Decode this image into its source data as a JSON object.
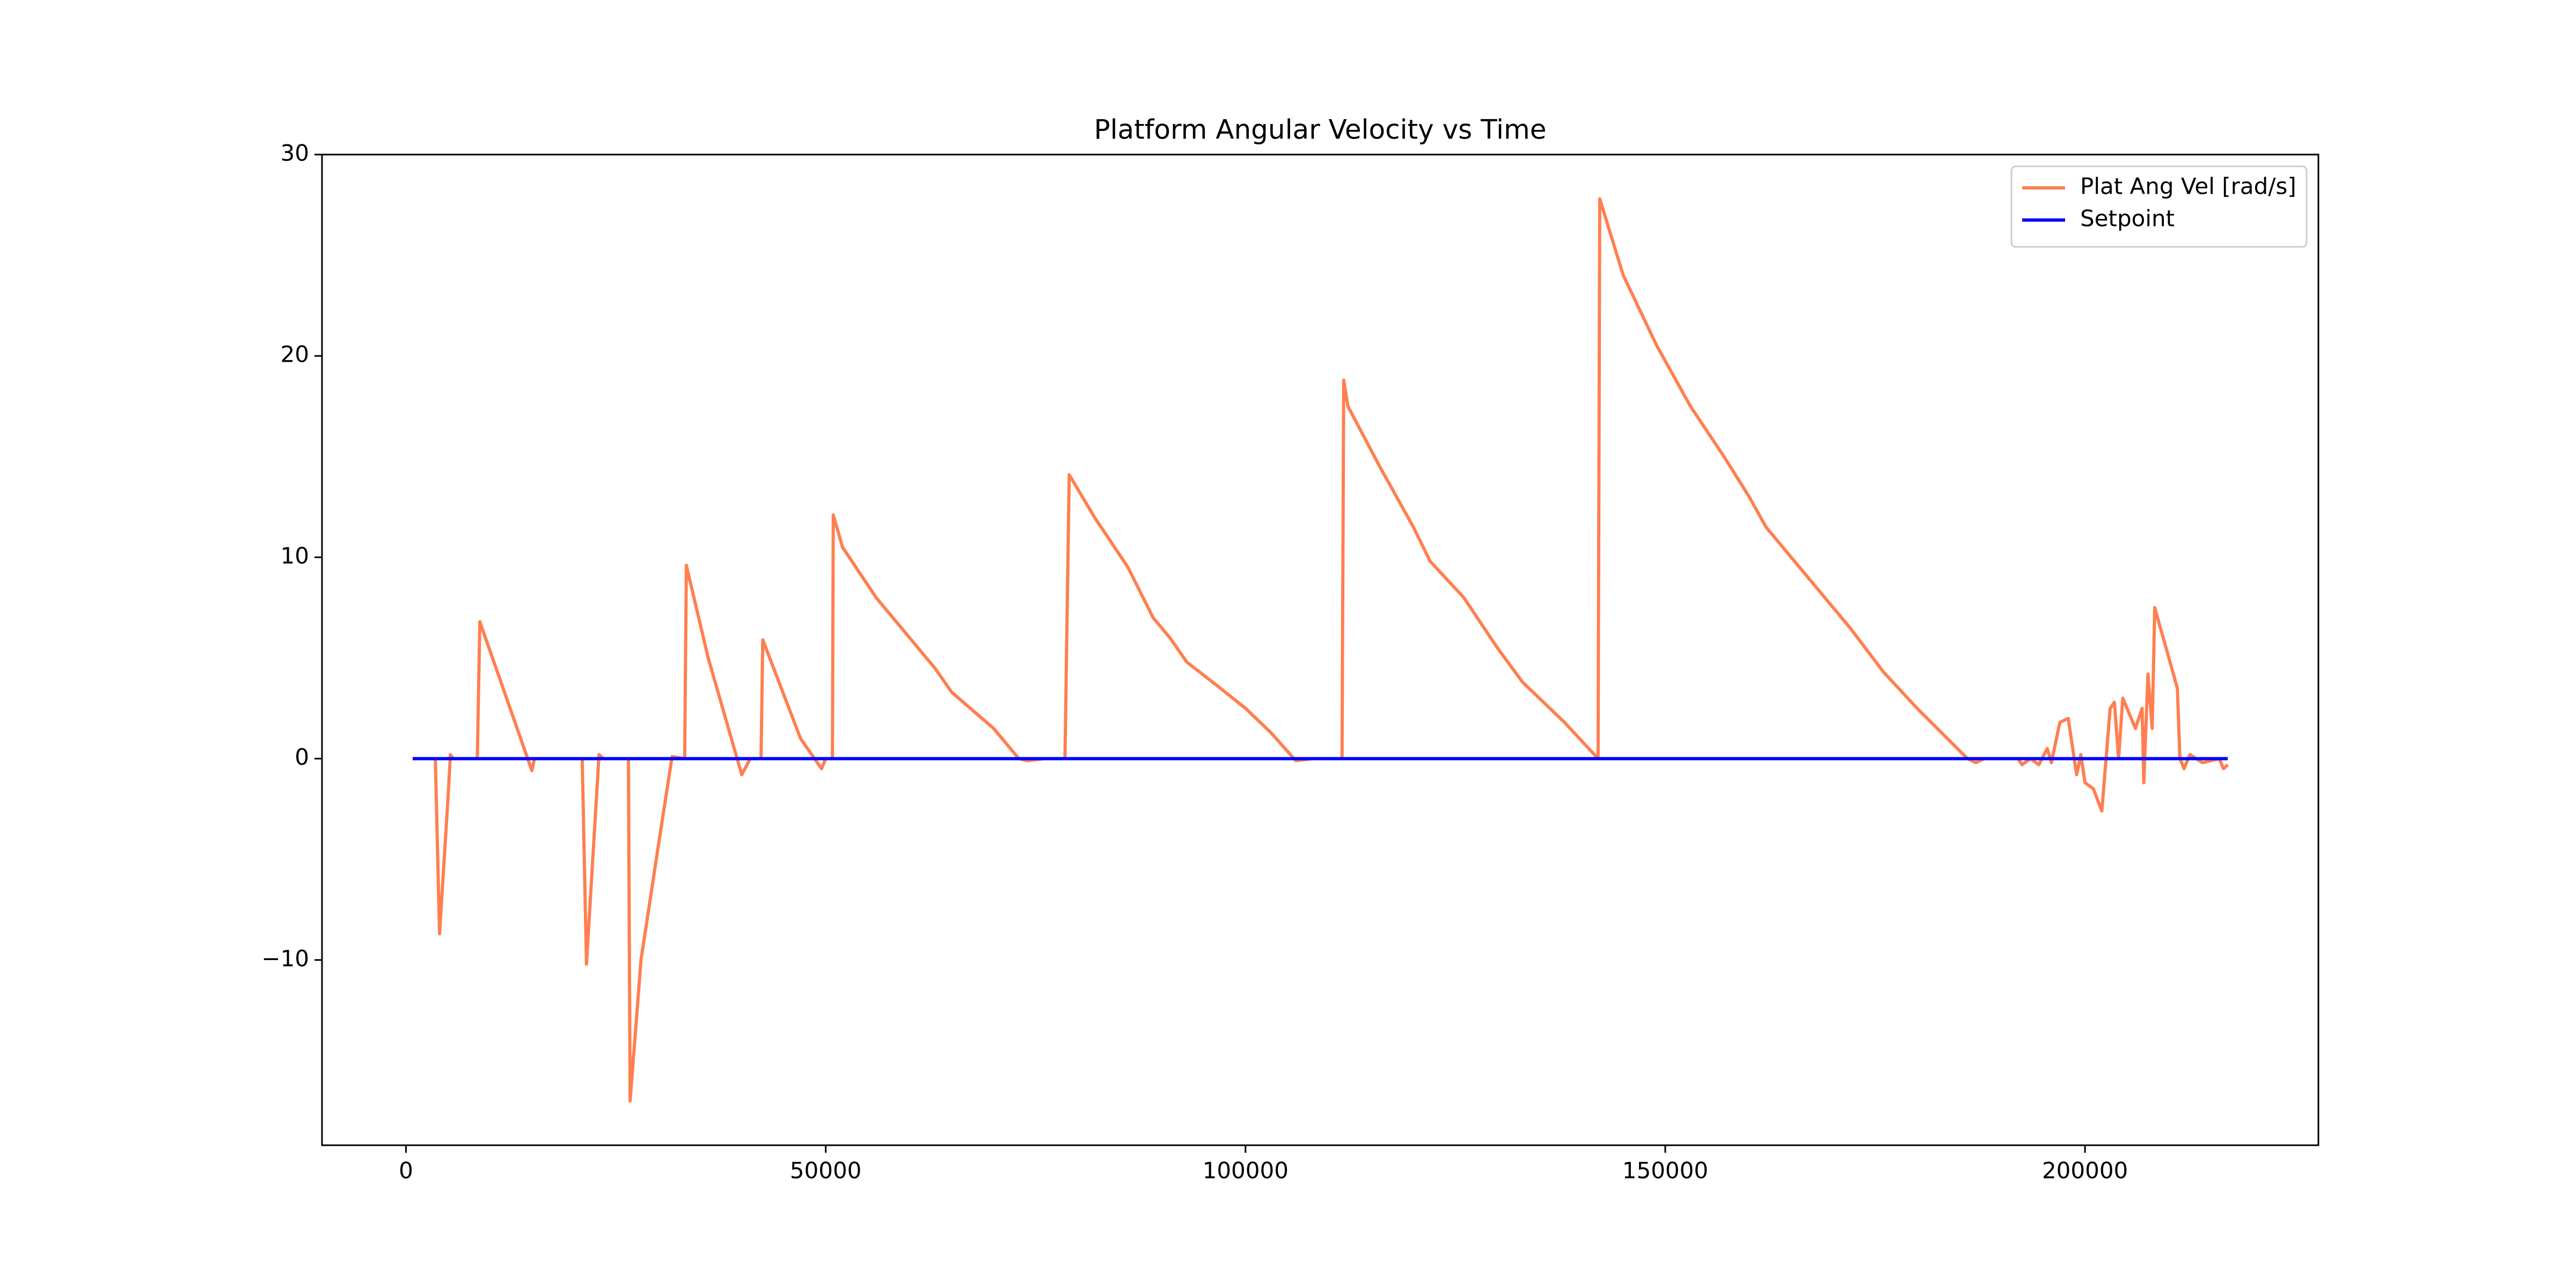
{
  "chart_data": {
    "type": "line",
    "title": "Platform Angular Velocity vs Time",
    "xlim": [
      -10000,
      227800
    ],
    "xticks": [
      0,
      50000,
      100000,
      150000,
      200000
    ],
    "ylim": [
      -19.2,
      30.0
    ],
    "yticks": [
      {
        "value": -10,
        "label": "−10"
      },
      0,
      10,
      20,
      30
    ],
    "legend": "upper right",
    "series": [
      {
        "name": "Plat Ang Vel [rad/s]",
        "color": "#ff7f50",
        "x": [
          800,
          3500,
          4000,
          5000,
          5300,
          5600,
          8500,
          8800,
          15000,
          15300,
          21000,
          21500,
          23000,
          23500,
          26500,
          26700,
          28000,
          30000,
          31700,
          33200,
          33400,
          36000,
          40000,
          41000,
          42300,
          42500,
          47000,
          49500,
          50000,
          50800,
          50900,
          52000,
          56000,
          60000,
          63000,
          65000,
          70000,
          73000,
          74000,
          76000,
          78500,
          79000,
          82000,
          86000,
          89000,
          91000,
          93000,
          97000,
          100000,
          103000,
          106000,
          108000,
          111500,
          111700,
          112200,
          116000,
          120000,
          122000,
          126000,
          130000,
          133000,
          138000,
          142000,
          142200,
          145000,
          149000,
          153000,
          157000,
          160000,
          162000,
          167000,
          172000,
          176000,
          180000,
          186000,
          187000,
          188000,
          192000,
          192500,
          193500,
          194500,
          195500,
          196000,
          197000,
          198000,
          199000,
          199500,
          200000,
          201000,
          202000,
          203000,
          203500,
          204000,
          204500,
          205500,
          206000,
          206800,
          207000,
          207500,
          208000,
          208300,
          211000,
          211300,
          211800,
          212500,
          214000,
          216000,
          216500,
          217000
        ],
        "values": [
          0,
          0,
          -8.7,
          -2,
          0.2,
          0,
          0,
          6.8,
          -0.6,
          0,
          0,
          -10.2,
          0.2,
          0,
          0,
          -17,
          -10,
          -4.5,
          0.1,
          0,
          9.6,
          5,
          -0.8,
          0,
          0,
          5.9,
          1,
          -0.5,
          0,
          0,
          12.1,
          10.5,
          8,
          6,
          4.5,
          3.3,
          1.5,
          0,
          -0.1,
          0,
          0,
          14.1,
          12,
          9.5,
          7,
          6,
          4.8,
          3.5,
          2.5,
          1.3,
          -0.1,
          0,
          0,
          18.8,
          17.5,
          14.5,
          11.5,
          9.8,
          8,
          5.5,
          3.8,
          1.8,
          0,
          27.8,
          24,
          20.5,
          17.5,
          15,
          13,
          11.5,
          9,
          6.5,
          4.3,
          2.5,
          0,
          -0.2,
          0,
          0,
          -0.3,
          0,
          -0.3,
          0.5,
          -0.2,
          1.8,
          2,
          -0.8,
          0.2,
          -1.2,
          -1.5,
          -2.6,
          2.5,
          2.8,
          0,
          3,
          2,
          1.5,
          2.5,
          -1.2,
          4.2,
          1.5,
          7.5,
          3.5,
          0,
          -0.5,
          0.2,
          -0.2,
          0,
          -0.5,
          -0.3
        ]
      },
      {
        "name": "Setpoint",
        "color": "#0000ff",
        "x": [
          800,
          217000
        ],
        "values": [
          0,
          0
        ]
      }
    ]
  }
}
